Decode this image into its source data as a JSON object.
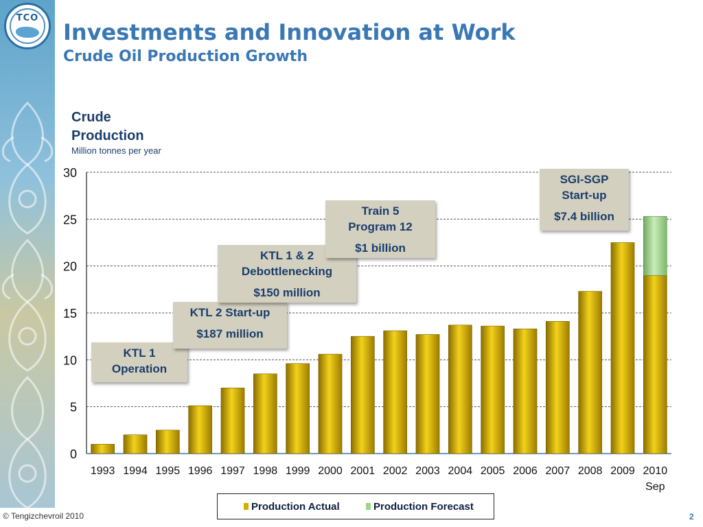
{
  "slide": {
    "title": "Investments and Innovation at Work",
    "subtitle": "Crude Oil Production Growth",
    "logo_text": "TCO",
    "copyright": "© Tengizchevroil 2010",
    "page_number": "2"
  },
  "colors": {
    "actual": "#d4ae00",
    "forecast": "#9fd48a",
    "title": "#3a78b4",
    "annotation_bg": "#d3d0bf"
  },
  "chart_data": {
    "type": "bar",
    "title": "Crude Production",
    "ylabel": "Million tonnes per year",
    "xlabel": "",
    "ylim": [
      0,
      30
    ],
    "yticks": [
      0,
      5,
      10,
      15,
      20,
      25,
      30
    ],
    "grid": true,
    "stacked": true,
    "categories": [
      "1993",
      "1994",
      "1995",
      "1996",
      "1997",
      "1998",
      "1999",
      "2000",
      "2001",
      "2002",
      "2003",
      "2004",
      "2005",
      "2006",
      "2007",
      "2008",
      "2009",
      "2010"
    ],
    "category_sublabels": {
      "2010": "Sep"
    },
    "series": [
      {
        "name": "Production Actual",
        "values": [
          1.0,
          2.0,
          2.5,
          5.1,
          7.0,
          8.5,
          9.6,
          10.6,
          12.5,
          13.1,
          12.7,
          13.7,
          13.6,
          13.3,
          14.1,
          17.3,
          22.5,
          19.0
        ]
      },
      {
        "name": "Production Forecast",
        "values": [
          0,
          0,
          0,
          0,
          0,
          0,
          0,
          0,
          0,
          0,
          0,
          0,
          0,
          0,
          0,
          0,
          0,
          6.3
        ]
      }
    ],
    "legend_position": "bottom",
    "annotations": [
      {
        "lines": [
          "KTL 1",
          "Operation"
        ],
        "cost": ""
      },
      {
        "lines": [
          "KTL 2 Start-up"
        ],
        "cost": "$187 million"
      },
      {
        "lines": [
          "KTL 1 & 2",
          "Debottlenecking"
        ],
        "cost": "$150 million"
      },
      {
        "lines": [
          "Train 5",
          "Program 12"
        ],
        "cost": "$1 billion"
      },
      {
        "lines": [
          "SGI-SGP",
          "Start-up"
        ],
        "cost": "$7.4 billion"
      }
    ]
  }
}
